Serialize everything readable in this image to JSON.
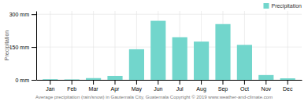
{
  "chart_data": {
    "type": "bar",
    "categories": [
      "Jan",
      "Feb",
      "Mar",
      "Apr",
      "May",
      "Jun",
      "Jul",
      "Aug",
      "Sep",
      "Oct",
      "Nov",
      "Dec"
    ],
    "series": [
      {
        "name": "Precipitation",
        "color": "#72d6cc",
        "values": [
          3,
          2,
          8,
          18,
          140,
          270,
          195,
          175,
          255,
          160,
          22,
          7
        ]
      }
    ],
    "ylabel": "Precipitation",
    "xlabel": "Average precipitation (rain/snow) in Gautemala City, Guatemala   Copyright © 2019 www.weather-and-climate.com",
    "ylim": [
      0,
      315
    ],
    "yticks": [
      {
        "value": 0,
        "label": "0 mm"
      },
      {
        "value": 150,
        "label": "150 mm"
      },
      {
        "value": 300,
        "label": "300 mm"
      }
    ],
    "grid": true,
    "legend": "upper right"
  }
}
